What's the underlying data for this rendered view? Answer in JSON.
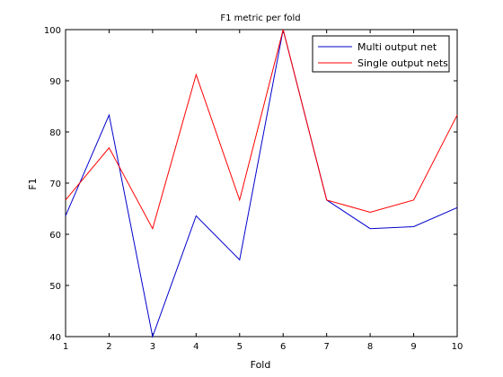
{
  "chart_data": {
    "type": "line",
    "title": "F1 metric per fold",
    "xlabel": "Fold",
    "ylabel": "F1",
    "xlim": [
      1,
      10
    ],
    "ylim": [
      40,
      100
    ],
    "x": [
      1,
      2,
      3,
      4,
      5,
      6,
      7,
      8,
      9,
      10
    ],
    "xticks": [
      "1",
      "2",
      "3",
      "4",
      "5",
      "6",
      "7",
      "8",
      "9",
      "10"
    ],
    "yticks": [
      "40",
      "50",
      "60",
      "70",
      "80",
      "90",
      "100"
    ],
    "grid": false,
    "legend_position": "top-right",
    "series": [
      {
        "name": "Multi output net",
        "color": "#0000cc",
        "values": [
          63.6,
          83.3,
          40.0,
          63.6,
          55.0,
          100.0,
          66.7,
          61.1,
          61.5,
          65.2
        ]
      },
      {
        "name": "Single output nets",
        "color": "#ff0000",
        "values": [
          66.7,
          76.9,
          61.1,
          91.2,
          66.7,
          100.0,
          66.7,
          64.3,
          66.7,
          83.3
        ]
      }
    ]
  }
}
